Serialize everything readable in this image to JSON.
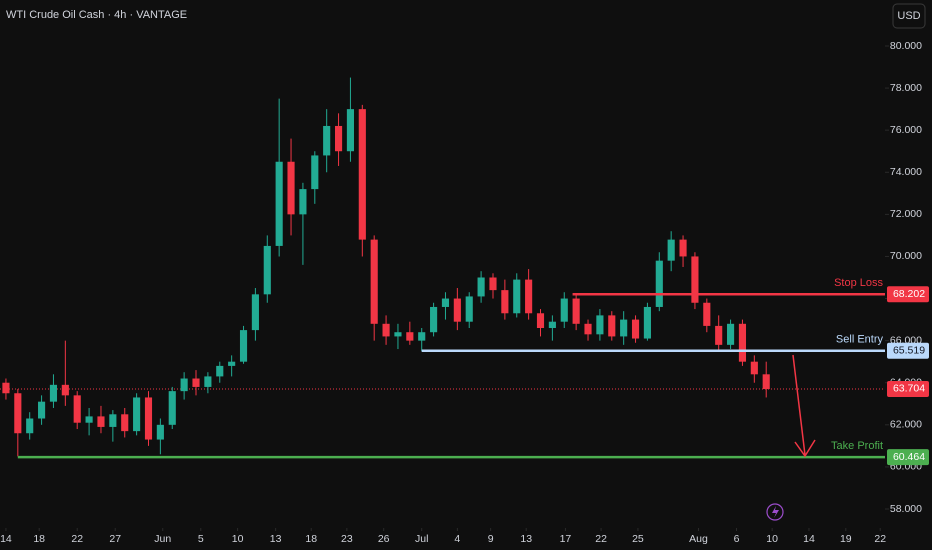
{
  "chart_data": {
    "type": "candlestick",
    "title": "WTI Crude Oil Cash · 4h · VANTAGE",
    "currency": "USD",
    "up_color": "#22ab94",
    "down_color": "#f23645",
    "open": [
      64.0,
      63.5,
      61.6,
      62.3,
      63.1,
      63.9,
      63.4,
      62.1,
      62.4,
      61.9,
      62.5,
      61.7,
      63.3,
      61.3,
      62.0,
      63.6,
      64.2,
      63.8,
      64.3,
      64.8,
      65.0,
      66.5,
      68.2,
      70.5,
      74.5,
      72.0,
      73.2,
      74.8,
      76.2,
      75.0,
      77.0,
      70.8,
      66.8,
      66.2,
      66.4,
      66.0,
      66.4,
      67.6,
      68.0,
      66.9,
      68.1,
      69.0,
      68.4,
      67.3,
      68.9,
      67.3,
      66.6,
      66.9,
      68.0,
      66.8,
      66.3,
      67.2,
      66.2,
      67.0,
      66.1,
      67.6,
      69.8,
      70.8,
      70.0,
      67.8,
      66.7,
      65.8,
      66.8,
      65.0,
      64.4
    ],
    "high": [
      64.2,
      63.7,
      62.6,
      63.4,
      64.4,
      66.0,
      63.6,
      62.8,
      62.9,
      62.7,
      62.8,
      63.5,
      63.6,
      62.3,
      63.8,
      64.5,
      64.6,
      64.5,
      65.0,
      65.3,
      66.7,
      68.5,
      71.0,
      77.5,
      75.6,
      73.5,
      75.0,
      77.0,
      76.8,
      78.5,
      77.2,
      71.0,
      67.2,
      66.8,
      66.9,
      66.6,
      67.8,
      68.3,
      68.5,
      68.3,
      69.3,
      69.2,
      68.9,
      69.2,
      69.4,
      67.5,
      67.2,
      68.3,
      68.2,
      67.0,
      67.5,
      67.4,
      67.4,
      67.2,
      67.8,
      70.2,
      71.2,
      71.0,
      70.2,
      68.0,
      67.2,
      67.0,
      67.0,
      65.3,
      65.0
    ],
    "low": [
      63.2,
      60.5,
      61.3,
      62.0,
      62.8,
      62.9,
      61.8,
      61.5,
      61.6,
      61.2,
      61.4,
      61.5,
      61.0,
      60.6,
      61.8,
      63.2,
      63.4,
      63.5,
      64.0,
      64.3,
      64.9,
      66.0,
      67.8,
      70.0,
      71.0,
      69.6,
      72.5,
      74.0,
      74.3,
      74.5,
      70.0,
      66.0,
      65.8,
      65.6,
      65.8,
      65.5,
      66.2,
      67.0,
      66.5,
      66.6,
      67.8,
      68.0,
      67.0,
      67.1,
      67.0,
      66.2,
      66.0,
      66.6,
      66.5,
      66.0,
      66.0,
      66.0,
      65.8,
      65.9,
      66.0,
      67.4,
      69.3,
      69.5,
      67.5,
      66.4,
      65.5,
      65.6,
      64.8,
      64.0,
      63.3
    ],
    "close": [
      63.5,
      61.6,
      62.3,
      63.1,
      63.9,
      63.4,
      62.1,
      62.4,
      61.9,
      62.5,
      61.7,
      63.3,
      61.3,
      62.0,
      63.6,
      64.2,
      63.8,
      64.3,
      64.8,
      65.0,
      66.5,
      68.2,
      70.5,
      74.5,
      72.0,
      73.2,
      74.8,
      76.2,
      75.0,
      77.0,
      70.8,
      66.8,
      66.2,
      66.4,
      66.0,
      66.4,
      67.6,
      68.0,
      66.9,
      68.1,
      69.0,
      68.4,
      67.3,
      68.9,
      67.3,
      66.6,
      66.9,
      68.0,
      66.8,
      66.3,
      67.2,
      66.2,
      67.0,
      66.1,
      67.6,
      69.8,
      70.8,
      70.0,
      67.8,
      66.7,
      65.8,
      66.8,
      65.0,
      64.4,
      63.7
    ],
    "xlim": [
      -0.5,
      74
    ],
    "xticks": [
      {
        "value": 0,
        "label": "14"
      },
      {
        "value": 2.8,
        "label": "18"
      },
      {
        "value": 6,
        "label": "22"
      },
      {
        "value": 9.2,
        "label": "27"
      },
      {
        "value": 13.2,
        "label": "Jun"
      },
      {
        "value": 16.4,
        "label": "5"
      },
      {
        "value": 19.5,
        "label": "10"
      },
      {
        "value": 22.7,
        "label": "13"
      },
      {
        "value": 25.7,
        "label": "18"
      },
      {
        "value": 28.7,
        "label": "23"
      },
      {
        "value": 31.8,
        "label": "26"
      },
      {
        "value": 35,
        "label": "Jul"
      },
      {
        "value": 38,
        "label": "4"
      },
      {
        "value": 40.8,
        "label": "9"
      },
      {
        "value": 43.8,
        "label": "13"
      },
      {
        "value": 47.1,
        "label": "17"
      },
      {
        "value": 50.1,
        "label": "22"
      },
      {
        "value": 53.2,
        "label": "25"
      },
      {
        "value": 58.3,
        "label": "Aug"
      },
      {
        "value": 61.5,
        "label": "6"
      },
      {
        "value": 64.5,
        "label": "10"
      },
      {
        "value": 67.6,
        "label": "14"
      },
      {
        "value": 70.7,
        "label": "19"
      },
      {
        "value": 73.6,
        "label": "22"
      }
    ],
    "ylim": [
      57.4,
      81.6
    ],
    "yticks": [
      {
        "value": 58,
        "label": "58.000"
      },
      {
        "value": 60,
        "label": "60.000"
      },
      {
        "value": 62,
        "label": "62.000"
      },
      {
        "value": 64,
        "label": "64.000"
      },
      {
        "value": 66,
        "label": "66.000"
      },
      {
        "value": 68,
        "label": "68.000"
      },
      {
        "value": 70,
        "label": "70.000"
      },
      {
        "value": 72,
        "label": "72.000"
      },
      {
        "value": 74,
        "label": "74.000"
      },
      {
        "value": 76,
        "label": "76.000"
      },
      {
        "value": 78,
        "label": "78.000"
      },
      {
        "value": 80,
        "label": "80.000"
      }
    ],
    "levels": [
      {
        "name": "Stop Loss",
        "value": 68.202,
        "color": "#f23645",
        "start": 47.7
      },
      {
        "name": "Sell Entry",
        "value": 65.519,
        "color": "#bbd9fb",
        "start": 35
      },
      {
        "name": "Take Profit",
        "value": 60.464,
        "color": "#4caf50",
        "start": 1
      }
    ],
    "last_price": {
      "value": 63.704,
      "color": "#f23645"
    }
  }
}
